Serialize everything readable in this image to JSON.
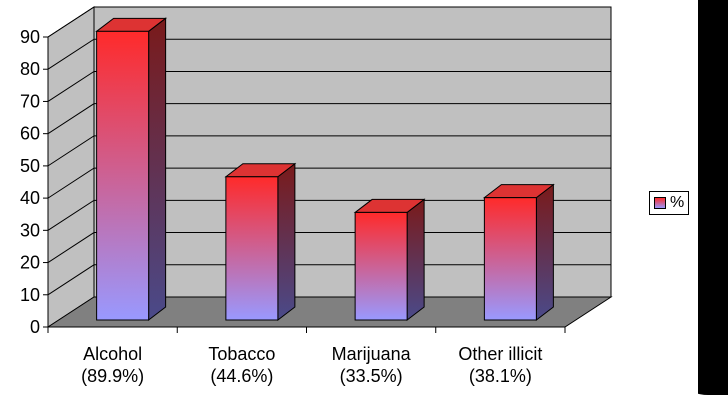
{
  "chart_data": {
    "type": "bar",
    "style": "3d-column",
    "categories": [
      "Alcohol",
      "Tobacco",
      "Marijuana",
      "Other illicit"
    ],
    "category_sublabels": [
      "(89.9%)",
      "(44.6%)",
      "(33.5%)",
      "(38.1%)"
    ],
    "series": [
      {
        "name": "%",
        "values": [
          89.9,
          44.6,
          33.5,
          38.1
        ]
      }
    ],
    "yticks": [
      "0",
      "10",
      "20",
      "30",
      "40",
      "50",
      "60",
      "70",
      "80",
      "90"
    ],
    "ylim": [
      0,
      90
    ],
    "grid": true,
    "legend_position": "right",
    "colors": {
      "bar_top": "#ff2a2a",
      "bar_bottom": "#9999ff",
      "bar_side": "#5a2a4a",
      "bar_cap": "#dd3333",
      "wall": "#c0c0c0",
      "floor": "#808080",
      "frame_dark": "#000000"
    }
  }
}
